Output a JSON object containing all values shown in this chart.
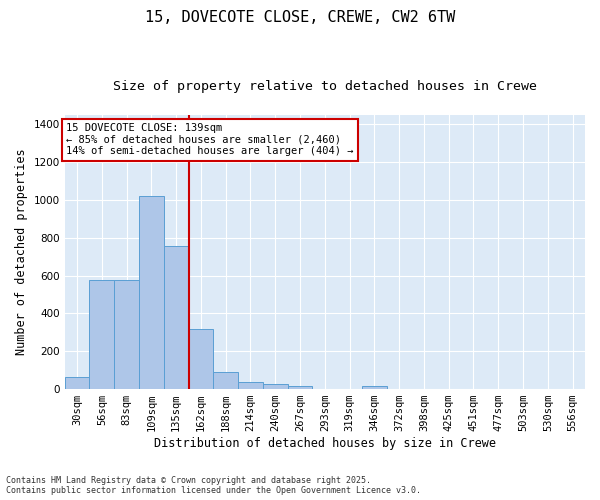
{
  "title1": "15, DOVECOTE CLOSE, CREWE, CW2 6TW",
  "title2": "Size of property relative to detached houses in Crewe",
  "xlabel": "Distribution of detached houses by size in Crewe",
  "ylabel": "Number of detached properties",
  "categories": [
    "30sqm",
    "56sqm",
    "83sqm",
    "109sqm",
    "135sqm",
    "162sqm",
    "188sqm",
    "214sqm",
    "240sqm",
    "267sqm",
    "293sqm",
    "319sqm",
    "346sqm",
    "372sqm",
    "398sqm",
    "425sqm",
    "451sqm",
    "477sqm",
    "503sqm",
    "530sqm",
    "556sqm"
  ],
  "values": [
    65,
    578,
    578,
    1022,
    758,
    320,
    90,
    40,
    25,
    15,
    0,
    0,
    15,
    0,
    0,
    0,
    0,
    0,
    0,
    0,
    0
  ],
  "bar_color": "#aec6e8",
  "bar_edge_color": "#5a9fd4",
  "annotation_text": "15 DOVECOTE CLOSE: 139sqm\n← 85% of detached houses are smaller (2,460)\n14% of semi-detached houses are larger (404) →",
  "annotation_box_color": "#ffffff",
  "annotation_border_color": "#cc0000",
  "red_line_color": "#cc0000",
  "background_color": "#ddeaf7",
  "grid_color": "#ffffff",
  "footer_line1": "Contains HM Land Registry data © Crown copyright and database right 2025.",
  "footer_line2": "Contains public sector information licensed under the Open Government Licence v3.0.",
  "ylim": [
    0,
    1450
  ],
  "title1_fontsize": 11,
  "title2_fontsize": 9.5,
  "xlabel_fontsize": 8.5,
  "ylabel_fontsize": 8.5,
  "tick_fontsize": 7.5,
  "footer_fontsize": 6.0
}
